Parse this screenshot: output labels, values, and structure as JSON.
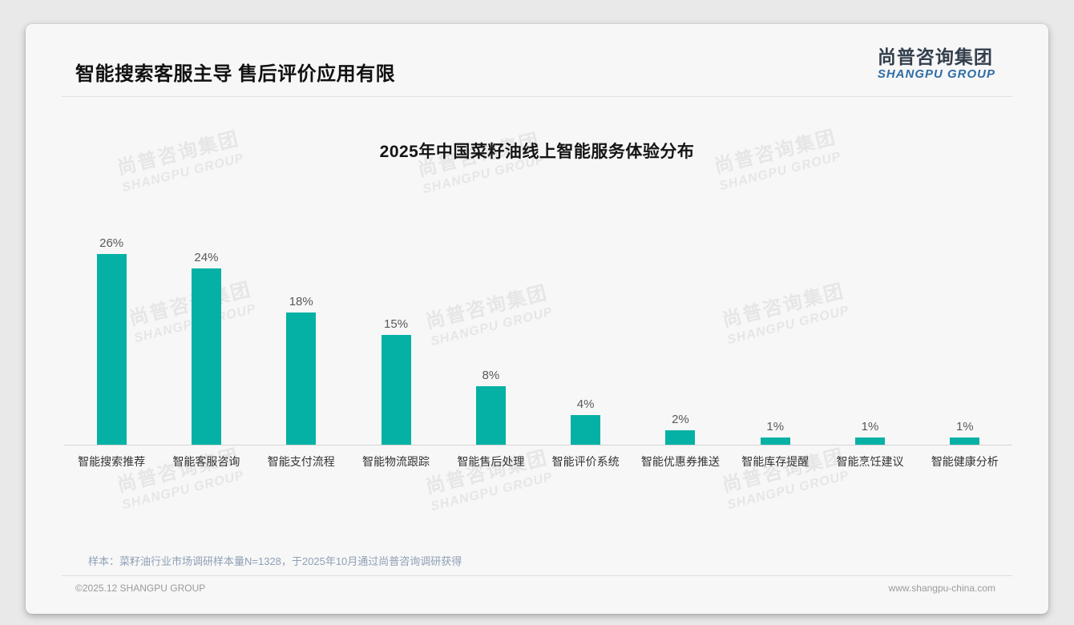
{
  "header": {
    "title": "智能搜索客服主导 售后评价应用有限"
  },
  "logo": {
    "cn": "尚普咨询集团",
    "en": "SHANGPU GROUP"
  },
  "watermark": {
    "cn": "尚普咨询集团",
    "en": "SHANGPU GROUP"
  },
  "chart_data": {
    "type": "bar",
    "title": "2025年中国菜籽油线上智能服务体验分布",
    "categories": [
      "智能搜索推荐",
      "智能客服咨询",
      "智能支付流程",
      "智能物流跟踪",
      "智能售后处理",
      "智能评价系统",
      "智能优惠券推送",
      "智能库存提醒",
      "智能烹饪建议",
      "智能健康分析"
    ],
    "values": [
      26,
      24,
      18,
      15,
      8,
      4,
      2,
      1,
      1,
      1
    ],
    "value_labels": [
      "26%",
      "24%",
      "18%",
      "15%",
      "8%",
      "4%",
      "2%",
      "1%",
      "1%",
      "1%"
    ],
    "bar_color": "#05b1a4",
    "xlabel": "",
    "ylabel": "",
    "ylim": [
      0,
      28
    ],
    "grid": false,
    "legend": false
  },
  "footnote": "样本：菜籽油行业市场调研样本量N=1328，于2025年10月通过尚普咨询调研获得",
  "footer": {
    "left": "©2025.12 SHANGPU GROUP",
    "right": "www.shangpu-china.com"
  }
}
